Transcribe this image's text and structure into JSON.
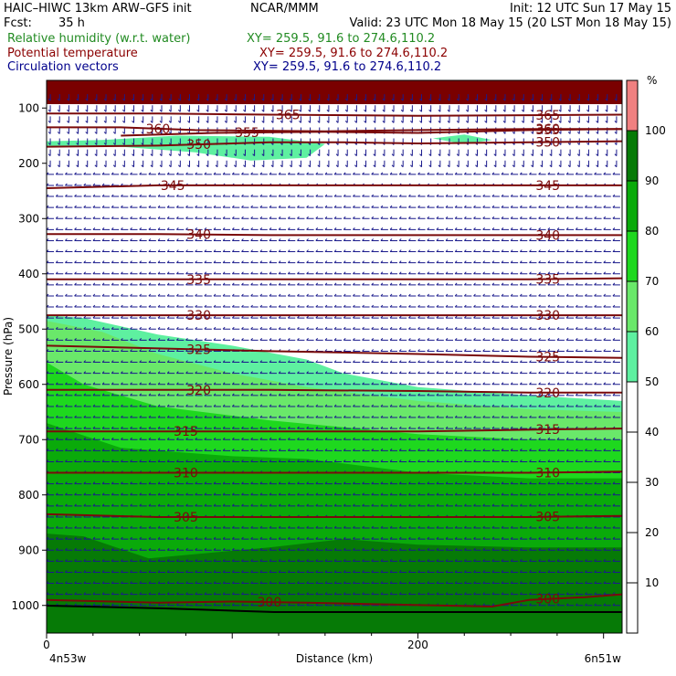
{
  "header": {
    "model_line": "HAIC–HIWC 13km ARW–GFS init",
    "org": "NCAR/MMM",
    "init": "Init: 12 UTC Sun 17 May 15",
    "fcst_label": "Fcst:",
    "fcst_value": "35 h",
    "valid": "Valid: 23 UTC Mon 18 May 15 (20 LST Mon 18 May 15)",
    "fields": [
      {
        "label": "Relative humidity (w.r.t. water)",
        "xy": "XY= 259.5, 91.6 to 274.6,110.2",
        "color": "#228b22"
      },
      {
        "label": "Potential temperature",
        "xy": "XY= 259.5, 91.6 to 274.6,110.2",
        "color": "#8b0000"
      },
      {
        "label": "Circulation vectors",
        "xy": "XY= 259.5, 91.6 to 274.6,110.2",
        "color": "#00008b"
      }
    ]
  },
  "chart_data": {
    "type": "cross-section",
    "xlabel": "Distance (km)",
    "ylabel": "Pressure (hPa)",
    "xlim": [
      0,
      310
    ],
    "ylim": [
      1050,
      50
    ],
    "x_ticks": [
      0,
      200
    ],
    "y_ticks": [
      100,
      200,
      300,
      400,
      500,
      600,
      700,
      800,
      900,
      1000
    ],
    "left_end_label": "4n53w",
    "right_end_label": "6n51w",
    "colorbar": {
      "unit": "%",
      "ticks": [
        10,
        20,
        30,
        40,
        50,
        60,
        70,
        80,
        90,
        100
      ],
      "levels": [
        {
          "from": 50,
          "to": 60,
          "color": "#5ef0a0"
        },
        {
          "from": 60,
          "to": 70,
          "color": "#6ae86a"
        },
        {
          "from": 70,
          "to": 80,
          "color": "#1ed81e"
        },
        {
          "from": 80,
          "to": 90,
          "color": "#0aaa0a"
        },
        {
          "from": 90,
          "to": 100,
          "color": "#067a06"
        },
        {
          "from": 100,
          "to": 110,
          "color": "#f08080"
        }
      ]
    },
    "humidity_regions": [
      {
        "level": 50,
        "points": [
          [
            0,
            475
          ],
          [
            20,
            480
          ],
          [
            60,
            510
          ],
          [
            100,
            530
          ],
          [
            140,
            555
          ],
          [
            160,
            580
          ],
          [
            200,
            605
          ],
          [
            260,
            620
          ],
          [
            310,
            630
          ],
          [
            310,
            1050
          ],
          [
            0,
            1050
          ]
        ]
      },
      {
        "level": 60,
        "points": [
          [
            0,
            485
          ],
          [
            30,
            505
          ],
          [
            60,
            545
          ],
          [
            100,
            580
          ],
          [
            140,
            605
          ],
          [
            200,
            630
          ],
          [
            260,
            645
          ],
          [
            310,
            650
          ],
          [
            310,
            1050
          ],
          [
            0,
            1050
          ]
        ]
      },
      {
        "level": 70,
        "points": [
          [
            0,
            560
          ],
          [
            20,
            600
          ],
          [
            60,
            640
          ],
          [
            120,
            665
          ],
          [
            200,
            690
          ],
          [
            260,
            700
          ],
          [
            310,
            700
          ],
          [
            310,
            1050
          ],
          [
            0,
            1050
          ]
        ]
      },
      {
        "level": 80,
        "points": [
          [
            0,
            670
          ],
          [
            40,
            715
          ],
          [
            100,
            730
          ],
          [
            140,
            735
          ],
          [
            200,
            760
          ],
          [
            260,
            770
          ],
          [
            310,
            770
          ],
          [
            310,
            1050
          ],
          [
            0,
            1050
          ]
        ]
      },
      {
        "level": 90,
        "points": [
          [
            0,
            870
          ],
          [
            20,
            875
          ],
          [
            55,
            915
          ],
          [
            120,
            895
          ],
          [
            160,
            880
          ],
          [
            200,
            890
          ],
          [
            260,
            895
          ],
          [
            310,
            895
          ],
          [
            310,
            1050
          ],
          [
            0,
            1050
          ]
        ]
      },
      {
        "level": 90,
        "points": [
          [
            0,
            920
          ],
          [
            15,
            915
          ],
          [
            25,
            935
          ],
          [
            35,
            975
          ],
          [
            50,
            990
          ],
          [
            80,
            995
          ],
          [
            0,
            995
          ]
        ]
      },
      {
        "level": 50,
        "points": [
          [
            0,
            160
          ],
          [
            30,
            158
          ],
          [
            70,
            150
          ],
          [
            120,
            152
          ],
          [
            150,
            165
          ],
          [
            140,
            190
          ],
          [
            110,
            195
          ],
          [
            80,
            180
          ],
          [
            40,
            170
          ],
          [
            0,
            170
          ]
        ]
      },
      {
        "level": 50,
        "points": [
          [
            208,
            155
          ],
          [
            225,
            148
          ],
          [
            240,
            158
          ],
          [
            225,
            165
          ]
        ]
      }
    ],
    "theta_contours": [
      {
        "value": 365,
        "points": [
          [
            0,
            110
          ],
          [
            60,
            110
          ],
          [
            120,
            112
          ],
          [
            200,
            114
          ],
          [
            260,
            113
          ],
          [
            310,
            112
          ]
        ],
        "label_x": 130
      },
      {
        "value": 360,
        "points": [
          [
            0,
            135
          ],
          [
            40,
            135
          ],
          [
            80,
            140
          ],
          [
            150,
            142
          ],
          [
            200,
            140
          ],
          [
            260,
            138
          ],
          [
            310,
            138
          ]
        ],
        "label_x": 60
      },
      {
        "value": 355,
        "points": [
          [
            40,
            150
          ],
          [
            90,
            145
          ],
          [
            150,
            143
          ],
          [
            200,
            145
          ],
          [
            260,
            140
          ],
          [
            310,
            138
          ]
        ],
        "label_x": 108
      },
      {
        "value": 350,
        "points": [
          [
            0,
            170
          ],
          [
            60,
            168
          ],
          [
            120,
            162
          ],
          [
            160,
            162
          ],
          [
            200,
            164
          ],
          [
            260,
            162
          ],
          [
            310,
            160
          ]
        ],
        "label_x": 82
      },
      {
        "value": 345,
        "points": [
          [
            0,
            245
          ],
          [
            60,
            240
          ],
          [
            120,
            240
          ],
          [
            200,
            240
          ],
          [
            260,
            240
          ],
          [
            310,
            240
          ]
        ],
        "label_x": 68
      },
      {
        "value": 340,
        "points": [
          [
            0,
            328
          ],
          [
            60,
            328
          ],
          [
            120,
            330
          ],
          [
            200,
            330
          ],
          [
            260,
            330
          ],
          [
            310,
            330
          ]
        ],
        "label_x": 82
      },
      {
        "value": 335,
        "points": [
          [
            0,
            410
          ],
          [
            60,
            410
          ],
          [
            120,
            410
          ],
          [
            200,
            410
          ],
          [
            260,
            410
          ],
          [
            310,
            408
          ]
        ],
        "label_x": 82
      },
      {
        "value": 330,
        "points": [
          [
            0,
            475
          ],
          [
            60,
            475
          ],
          [
            120,
            475
          ],
          [
            200,
            475
          ],
          [
            260,
            475
          ],
          [
            310,
            475
          ]
        ],
        "label_x": 82
      },
      {
        "value": 325,
        "points": [
          [
            0,
            530
          ],
          [
            60,
            535
          ],
          [
            120,
            540
          ],
          [
            200,
            545
          ],
          [
            260,
            550
          ],
          [
            310,
            552
          ]
        ],
        "label_x": 82
      },
      {
        "value": 320,
        "points": [
          [
            0,
            610
          ],
          [
            60,
            610
          ],
          [
            120,
            610
          ],
          [
            200,
            612
          ],
          [
            260,
            615
          ],
          [
            310,
            615
          ]
        ],
        "label_x": 82
      },
      {
        "value": 315,
        "points": [
          [
            0,
            685
          ],
          [
            60,
            685
          ],
          [
            120,
            685
          ],
          [
            200,
            685
          ],
          [
            260,
            682
          ],
          [
            310,
            680
          ]
        ],
        "label_x": 75
      },
      {
        "value": 310,
        "points": [
          [
            0,
            760
          ],
          [
            60,
            760
          ],
          [
            120,
            760
          ],
          [
            200,
            760
          ],
          [
            260,
            760
          ],
          [
            310,
            758
          ]
        ],
        "label_x": 75
      },
      {
        "value": 305,
        "points": [
          [
            0,
            835
          ],
          [
            60,
            840
          ],
          [
            120,
            840
          ],
          [
            200,
            840
          ],
          [
            260,
            840
          ],
          [
            310,
            838
          ]
        ],
        "label_x": 75
      },
      {
        "value": 300,
        "points": [
          [
            0,
            990
          ],
          [
            60,
            995
          ],
          [
            100,
            993
          ],
          [
            140,
            995
          ],
          [
            180,
            998
          ],
          [
            240,
            1002
          ],
          [
            260,
            990
          ],
          [
            290,
            985
          ],
          [
            310,
            980
          ]
        ],
        "label_x": 120
      }
    ],
    "circulation_vector_grid": {
      "x_start": 2,
      "x_step": 5,
      "x_count": 62,
      "p_start": 80,
      "p_step": 20,
      "p_count": 47
    }
  }
}
